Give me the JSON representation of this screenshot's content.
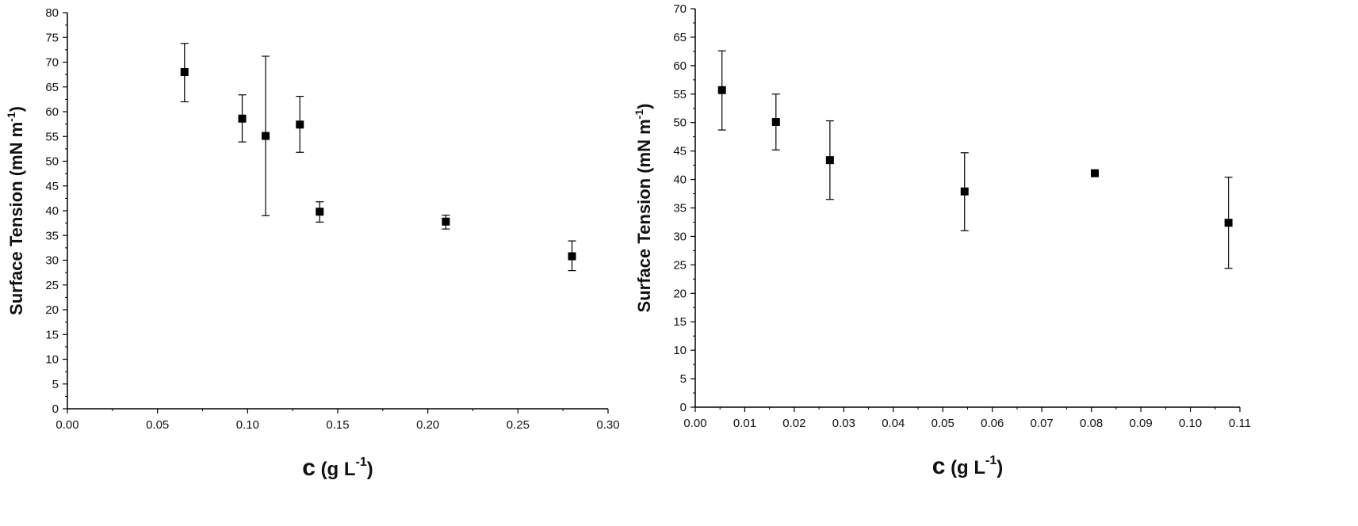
{
  "chart_data": [
    {
      "type": "scatter",
      "xlabel": {
        "main": "c",
        "unit_pre": "(g L",
        "unit_sup": "-1",
        "unit_post": ")"
      },
      "ylabel": {
        "main": "Surface Tension (mN m",
        "sup": "-1",
        "post": ")"
      },
      "xlim": [
        0,
        0.3
      ],
      "ylim": [
        0,
        80
      ],
      "xticks": [
        0.0,
        0.05,
        0.1,
        0.15,
        0.2,
        0.25,
        0.3
      ],
      "xtick_labels": [
        "0.00",
        "0.05",
        "0.10",
        "0.15",
        "0.20",
        "0.25",
        "0.30"
      ],
      "yticks": [
        0,
        5,
        10,
        15,
        20,
        25,
        30,
        35,
        40,
        45,
        50,
        55,
        60,
        65,
        70,
        75,
        80
      ],
      "ytick_labels": [
        "0",
        "5",
        "10",
        "15",
        "20",
        "25",
        "30",
        "35",
        "40",
        "45",
        "50",
        "55",
        "60",
        "65",
        "70",
        "75",
        "80"
      ],
      "grid": false,
      "series": [
        {
          "points": [
            {
              "x": 0.065,
              "y": 68.0,
              "err_low": 62.0,
              "err_high": 73.8
            },
            {
              "x": 0.097,
              "y": 58.6,
              "err_low": 53.9,
              "err_high": 63.4
            },
            {
              "x": 0.11,
              "y": 55.1,
              "err_low": 39.0,
              "err_high": 71.2
            },
            {
              "x": 0.129,
              "y": 57.4,
              "err_low": 51.8,
              "err_high": 63.1
            },
            {
              "x": 0.14,
              "y": 39.8,
              "err_low": 37.7,
              "err_high": 41.8
            },
            {
              "x": 0.21,
              "y": 37.8,
              "err_low": 36.3,
              "err_high": 39.1
            },
            {
              "x": 0.28,
              "y": 30.8,
              "err_low": 27.9,
              "err_high": 33.9
            }
          ]
        }
      ]
    },
    {
      "type": "scatter",
      "xlabel": {
        "main": "c",
        "unit_pre": "(g L",
        "unit_sup": "-1",
        "unit_post": ")"
      },
      "ylabel": {
        "main": "Surface Tension (mN m",
        "sup": "-1",
        "post": ")"
      },
      "xlim": [
        0,
        0.11
      ],
      "ylim": [
        0,
        70
      ],
      "xticks": [
        0.0,
        0.01,
        0.02,
        0.03,
        0.04,
        0.05,
        0.06,
        0.07,
        0.08,
        0.09,
        0.1,
        0.11
      ],
      "xtick_labels": [
        "0.00",
        "0.01",
        "0.02",
        "0.03",
        "0.04",
        "0.05",
        "0.06",
        "0.07",
        "0.08",
        "0.09",
        "0.10",
        "0.11"
      ],
      "yticks": [
        0,
        5,
        10,
        15,
        20,
        25,
        30,
        35,
        40,
        45,
        50,
        55,
        60,
        65,
        70
      ],
      "ytick_labels": [
        "0",
        "5",
        "10",
        "15",
        "20",
        "25",
        "30",
        "35",
        "40",
        "45",
        "50",
        "55",
        "60",
        "65",
        "70"
      ],
      "grid": false,
      "series": [
        {
          "points": [
            {
              "x": 0.0054,
              "y": 55.7,
              "err_low": 48.7,
              "err_high": 62.6
            },
            {
              "x": 0.0163,
              "y": 50.1,
              "err_low": 45.2,
              "err_high": 55.0
            },
            {
              "x": 0.0272,
              "y": 43.4,
              "err_low": 36.5,
              "err_high": 50.3
            },
            {
              "x": 0.0544,
              "y": 37.9,
              "err_low": 31.0,
              "err_high": 44.7
            },
            {
              "x": 0.0807,
              "y": 41.1,
              "err_low": 41.1,
              "err_high": 41.1
            },
            {
              "x": 0.1077,
              "y": 32.4,
              "err_low": 24.4,
              "err_high": 40.4
            }
          ]
        }
      ]
    }
  ]
}
